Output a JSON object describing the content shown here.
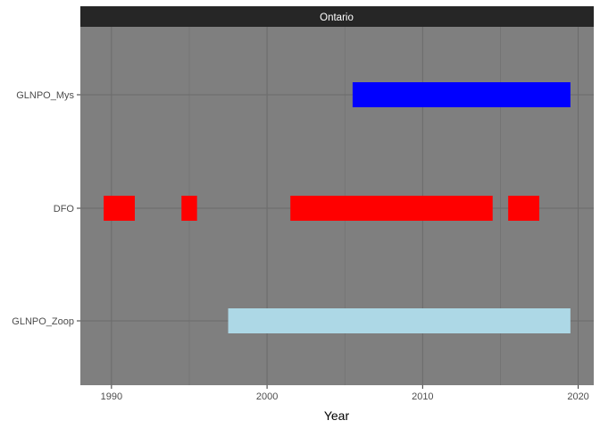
{
  "chart_data": {
    "type": "bar",
    "subtype": "timeline",
    "facet": "Ontario",
    "xlabel": "Year",
    "ylabel": "",
    "xlim": [
      1988,
      2021
    ],
    "x_ticks": [
      1990,
      2000,
      2010,
      2020
    ],
    "categories": [
      "GLNPO_Mys",
      "DFO",
      "GLNPO_Zoop"
    ],
    "series": [
      {
        "category": "GLNPO_Mys",
        "color": "#0000ff",
        "ranges": [
          [
            2005.5,
            2019.5
          ]
        ]
      },
      {
        "category": "DFO",
        "color": "#ff0000",
        "ranges": [
          [
            1989.5,
            1991.5
          ],
          [
            1994.5,
            1995.5
          ],
          [
            2001.5,
            2014.5
          ],
          [
            2015.5,
            2017.5
          ]
        ]
      },
      {
        "category": "GLNPO_Zoop",
        "color": "#add8e6",
        "ranges": [
          [
            1997.5,
            2019.5
          ]
        ]
      }
    ],
    "grid": true,
    "legend": "none",
    "colors": {
      "panel": "#7f7f7f",
      "grid": "#6b6b6b",
      "strip": "#262626"
    }
  }
}
